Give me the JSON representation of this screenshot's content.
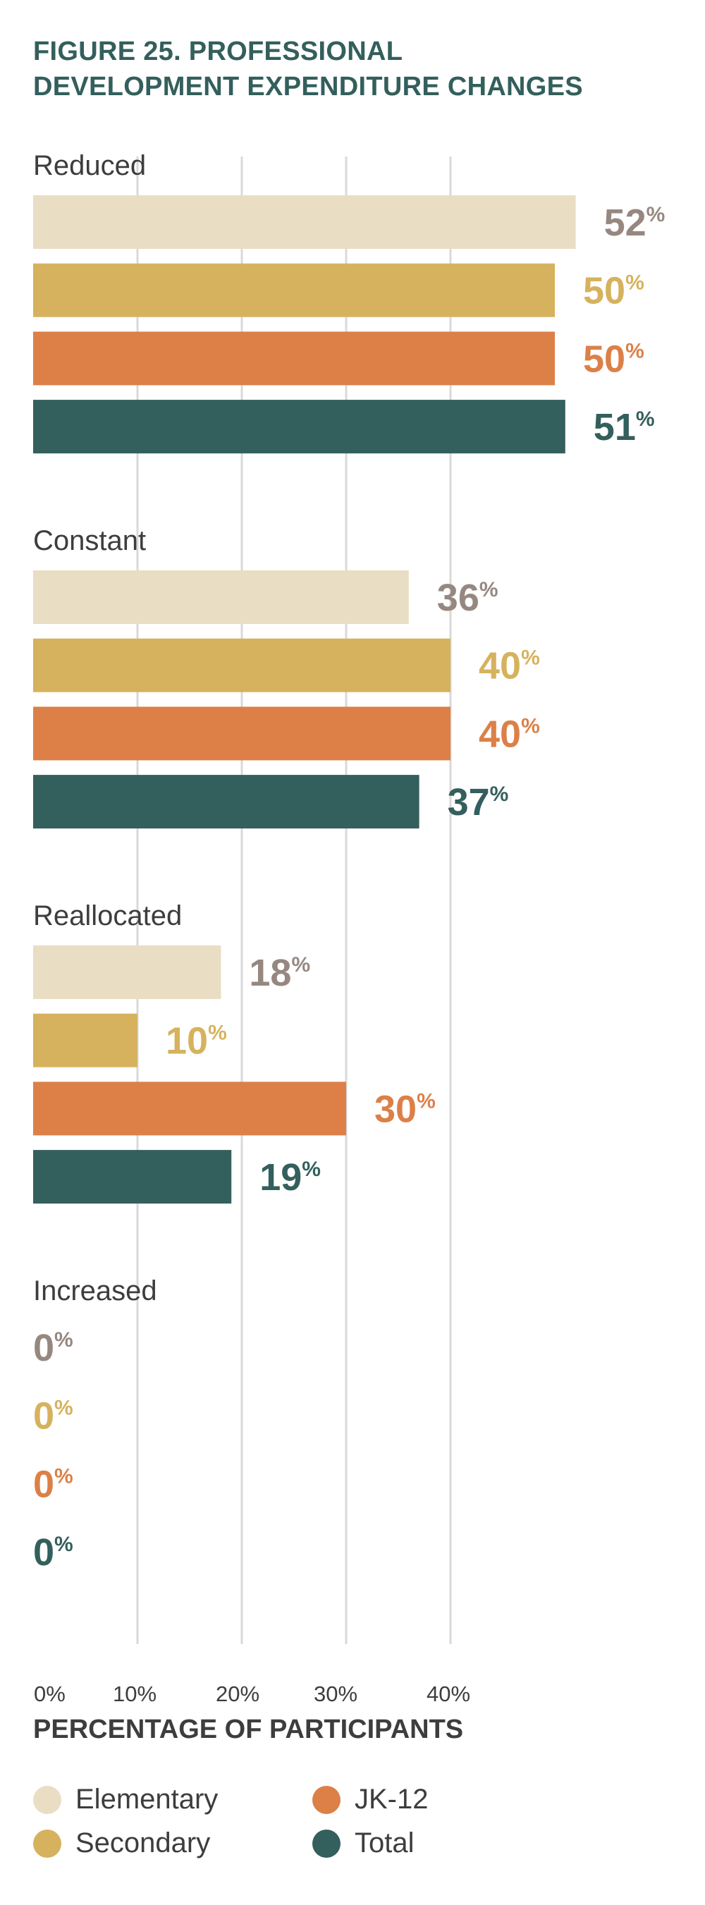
{
  "title_line1": "FIGURE 25. PROFESSIONAL",
  "title_line2": "DEVELOPMENT EXPENDITURE CHANGES",
  "chart_data": {
    "type": "bar",
    "orientation": "horizontal",
    "title": "FIGURE 25. PROFESSIONAL DEVELOPMENT EXPENDITURE CHANGES",
    "xlabel": "PERCENTAGE OF PARTICIPANTS",
    "ylabel": "",
    "xlim": [
      0,
      50
    ],
    "xticks": [
      0,
      10,
      20,
      30,
      40
    ],
    "xtick_labels": [
      "0%",
      "10%",
      "20%",
      "30%",
      "40%"
    ],
    "grid": true,
    "categories": [
      "Reduced",
      "Constant",
      "Reallocated",
      "Increased"
    ],
    "series": [
      {
        "name": "Elementary",
        "color": "#e9ddc3",
        "label_color": "#968880",
        "values": [
          52,
          36,
          18,
          0
        ]
      },
      {
        "name": "Secondary",
        "color": "#d6b25e",
        "label_color": "#d6b25e",
        "values": [
          50,
          40,
          10,
          0
        ]
      },
      {
        "name": "JK-12",
        "color": "#dc8048",
        "label_color": "#dc8048",
        "values": [
          50,
          40,
          30,
          0
        ]
      },
      {
        "name": "Total",
        "color": "#335f5c",
        "label_color": "#335f5c",
        "values": [
          51,
          37,
          19,
          0
        ]
      }
    ],
    "value_suffix": "%",
    "legend_position": "bottom-left"
  }
}
